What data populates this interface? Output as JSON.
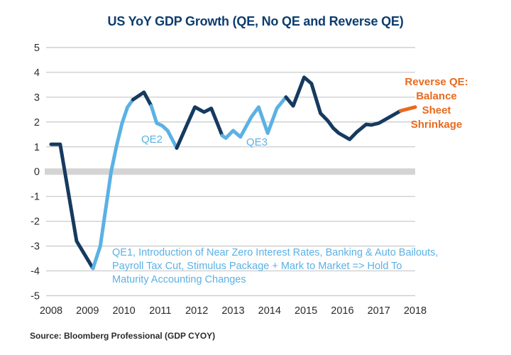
{
  "footer": {
    "source": "Source: Bloomberg Professional (GDP CYOY)"
  },
  "chart_data": {
    "type": "line",
    "title": "US YoY GDP Growth (QE, No QE and Reverse QE)",
    "legend": "none",
    "grid": "horizontal",
    "zero_band": true,
    "x_axis": {
      "ticks": [
        2008,
        2009,
        2010,
        2011,
        2012,
        2013,
        2014,
        2015,
        2016,
        2017,
        2018
      ],
      "range": [
        2008,
        2018
      ]
    },
    "y_axis": {
      "ticks": [
        5,
        4,
        3,
        2,
        1,
        0,
        -1,
        -2,
        -3,
        -4,
        -5
      ],
      "range": [
        -5,
        5
      ]
    },
    "colors": {
      "dark": "#163A5F",
      "light": "#5BB1E4",
      "orange": "#E76A1F",
      "grid": "#CCCCCC",
      "zero_band": "#D4D4D4",
      "tick_text": "#2B2B2B",
      "title_text": "#0C3D6F",
      "source_text": "#2B2B2B"
    },
    "segments": [
      {
        "phase": "no-qe-2008",
        "color_key": "dark",
        "points": [
          [
            2008.0,
            1.1
          ],
          [
            2008.25,
            1.1
          ],
          [
            2008.7,
            -2.8
          ],
          [
            2009.15,
            -3.9
          ]
        ]
      },
      {
        "phase": "qe1",
        "color_key": "light",
        "points": [
          [
            2009.15,
            -3.9
          ],
          [
            2009.35,
            -3.0
          ],
          [
            2009.65,
            0.0
          ],
          [
            2009.8,
            1.05
          ],
          [
            2009.95,
            1.95
          ],
          [
            2010.1,
            2.6
          ],
          [
            2010.25,
            2.9
          ]
        ]
      },
      {
        "phase": "no-qe-2010",
        "color_key": "dark",
        "points": [
          [
            2010.25,
            2.9
          ],
          [
            2010.55,
            3.2
          ],
          [
            2010.75,
            2.65
          ]
        ]
      },
      {
        "phase": "qe2",
        "color_key": "light",
        "points": [
          [
            2010.75,
            2.65
          ],
          [
            2010.9,
            1.95
          ],
          [
            2011.05,
            1.85
          ],
          [
            2011.2,
            1.65
          ],
          [
            2011.45,
            0.95
          ]
        ]
      },
      {
        "phase": "no-qe-2012",
        "color_key": "dark",
        "points": [
          [
            2011.45,
            0.95
          ],
          [
            2011.75,
            1.95
          ],
          [
            2011.95,
            2.6
          ],
          [
            2012.2,
            2.4
          ],
          [
            2012.4,
            2.55
          ],
          [
            2012.7,
            1.45
          ]
        ]
      },
      {
        "phase": "qe3",
        "color_key": "light",
        "points": [
          [
            2012.7,
            1.45
          ],
          [
            2012.8,
            1.35
          ],
          [
            2013.0,
            1.65
          ],
          [
            2013.2,
            1.4
          ],
          [
            2013.5,
            2.2
          ],
          [
            2013.7,
            2.6
          ],
          [
            2013.95,
            1.55
          ],
          [
            2014.2,
            2.55
          ],
          [
            2014.45,
            3.0
          ]
        ]
      },
      {
        "phase": "no-qe-2015",
        "color_key": "dark",
        "points": [
          [
            2014.45,
            3.0
          ],
          [
            2014.65,
            2.65
          ],
          [
            2014.95,
            3.8
          ],
          [
            2015.15,
            3.55
          ],
          [
            2015.4,
            2.35
          ],
          [
            2015.6,
            2.05
          ],
          [
            2015.75,
            1.75
          ],
          [
            2015.9,
            1.55
          ],
          [
            2016.2,
            1.3
          ],
          [
            2016.4,
            1.6
          ],
          [
            2016.65,
            1.9
          ],
          [
            2016.8,
            1.88
          ],
          [
            2017.0,
            1.95
          ],
          [
            2017.3,
            2.2
          ],
          [
            2017.6,
            2.45
          ]
        ]
      },
      {
        "phase": "reverse-qe",
        "color_key": "orange",
        "points": [
          [
            2017.6,
            2.45
          ],
          [
            2018.0,
            2.6
          ]
        ]
      }
    ],
    "annotations": {
      "qe1": {
        "color_key": "light",
        "lines": [
          "QE1, Introduction of Near Zero Interest Rates, Banking & Auto Bailouts,",
          "Payroll Tax Cut, Stimulus Package + Mark to Market => Hold To",
          "Maturity Accounting Changes"
        ]
      },
      "qe2": {
        "label": "QE2",
        "color_key": "light"
      },
      "qe3": {
        "label": "QE3",
        "color_key": "light"
      },
      "reverse_qe": {
        "color_key": "orange",
        "lines": [
          "Reverse QE:",
          "Balance",
          "Sheet",
          "Shrinkage"
        ]
      }
    }
  }
}
